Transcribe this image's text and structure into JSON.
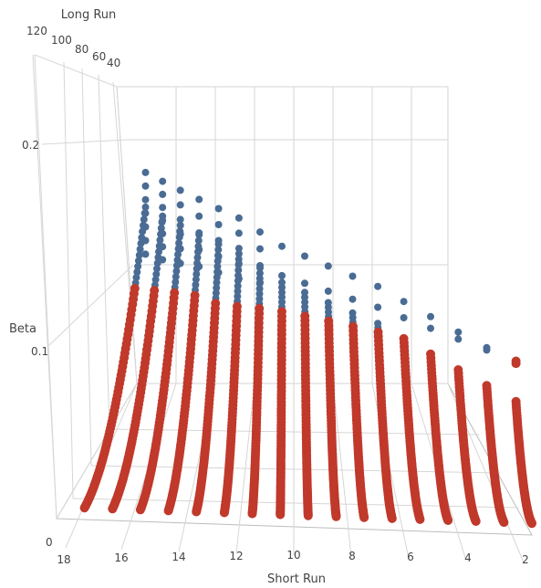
{
  "chart_data": {
    "type": "scatter3d",
    "axes": {
      "x": {
        "title": "Short Run",
        "ticks": [
          "18",
          "16",
          "14",
          "12",
          "10",
          "8",
          "6",
          "4",
          "2"
        ],
        "range": [
          2,
          19
        ]
      },
      "y": {
        "title": "Long Run",
        "ticks": [
          "120",
          "100",
          "80",
          "60",
          "40"
        ],
        "range": [
          30,
          125
        ]
      },
      "z": {
        "title": "Beta",
        "ticks": [
          "0",
          "0.1",
          "0.2"
        ],
        "range": [
          0,
          0.24
        ]
      }
    },
    "grid": true,
    "legend": "none",
    "colors": {
      "above": "#4a6c94",
      "below": "#c0392b"
    },
    "series": [
      {
        "short_run": 2,
        "long_run_range": [
          30,
          48
        ],
        "beta_peak": 0.11
      },
      {
        "short_run": 3,
        "long_run_range": [
          30,
          52
        ],
        "beta_peak": 0.12
      },
      {
        "short_run": 4,
        "long_run_range": [
          30,
          56
        ],
        "beta_peak": 0.13
      },
      {
        "short_run": 5,
        "long_run_range": [
          30,
          60
        ],
        "beta_peak": 0.14
      },
      {
        "short_run": 6,
        "long_run_range": [
          30,
          64
        ],
        "beta_peak": 0.15
      },
      {
        "short_run": 7,
        "long_run_range": [
          30,
          68
        ],
        "beta_peak": 0.16
      },
      {
        "short_run": 8,
        "long_run_range": [
          30,
          72
        ],
        "beta_peak": 0.165
      },
      {
        "short_run": 9,
        "long_run_range": [
          30,
          76
        ],
        "beta_peak": 0.17
      },
      {
        "short_run": 10,
        "long_run_range": [
          30,
          80
        ],
        "beta_peak": 0.175
      },
      {
        "short_run": 11,
        "long_run_range": [
          30,
          84
        ],
        "beta_peak": 0.18
      },
      {
        "short_run": 12,
        "long_run_range": [
          30,
          88
        ],
        "beta_peak": 0.19
      },
      {
        "short_run": 13,
        "long_run_range": [
          30,
          92
        ],
        "beta_peak": 0.2
      },
      {
        "short_run": 14,
        "long_run_range": [
          30,
          96
        ],
        "beta_peak": 0.205
      },
      {
        "short_run": 15,
        "long_run_range": [
          30,
          100
        ],
        "beta_peak": 0.21
      },
      {
        "short_run": 16,
        "long_run_range": [
          30,
          104
        ],
        "beta_peak": 0.215
      },
      {
        "short_run": 17,
        "long_run_range": [
          30,
          108
        ],
        "beta_peak": 0.22
      },
      {
        "short_run": 18,
        "long_run_range": [
          30,
          112
        ],
        "beta_peak": 0.225
      }
    ],
    "blue_threshold": 0.155
  }
}
